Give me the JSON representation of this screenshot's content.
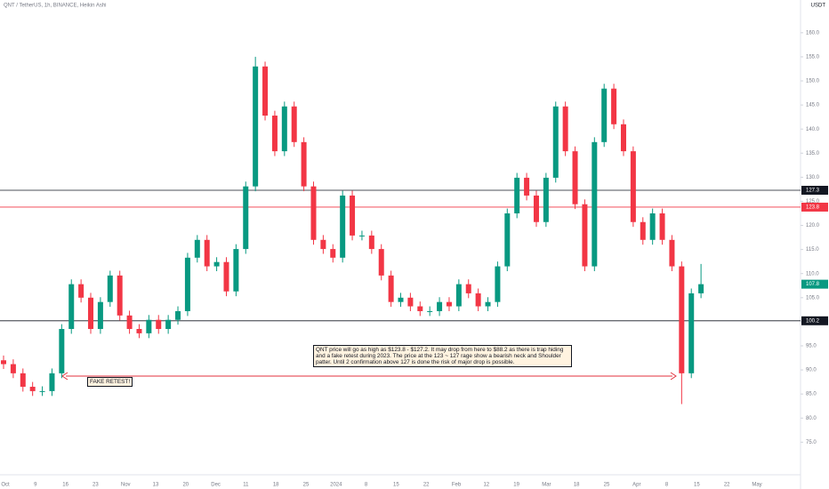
{
  "chart_data": {
    "type": "candlestick",
    "title": "QNT / TetherUS, 1h, BINANCE, Heikin Ashi",
    "currency": "USDT",
    "up_color": "#089981",
    "down_color": "#f23645",
    "open": [
      92.0,
      91.2,
      89.3,
      86.5,
      85.6,
      85.6,
      89.3,
      98.5,
      107.8,
      105.0,
      98.5,
      104.1,
      109.6,
      101.3,
      98.5,
      97.6,
      100.4,
      98.5,
      100.4,
      102.2,
      113.3,
      117.0,
      111.5,
      112.4,
      106.3,
      115.1,
      128.1,
      153.0,
      142.8,
      135.4,
      144.7,
      137.3,
      128.1,
      117.0,
      115.1,
      113.3,
      126.2,
      117.9,
      117.9,
      115.1,
      109.6,
      104.1,
      105.0,
      103.2,
      102.2,
      102.2,
      104.1,
      103.2,
      107.8,
      105.9,
      103.2,
      104.1,
      111.5,
      122.5,
      129.9,
      126.2,
      120.7,
      129.9,
      144.7,
      135.4,
      124.4,
      111.5,
      137.3,
      148.4,
      141.0,
      135.4,
      120.7,
      117.0,
      122.5,
      117.0,
      111.5,
      89.3,
      105.9
    ],
    "high": [
      93.0,
      92.2,
      90.3,
      87.5,
      86.6,
      90.3,
      99.5,
      108.8,
      108.8,
      106.0,
      105.1,
      110.6,
      110.6,
      102.3,
      99.5,
      101.4,
      101.4,
      101.4,
      103.2,
      114.3,
      118.0,
      118.0,
      113.4,
      113.4,
      116.1,
      129.1,
      155.0,
      154.0,
      143.8,
      145.7,
      145.7,
      138.3,
      129.1,
      118.0,
      116.1,
      127.2,
      127.2,
      118.9,
      118.9,
      116.1,
      110.6,
      106.0,
      106.0,
      104.2,
      103.2,
      105.1,
      105.1,
      108.8,
      108.8,
      106.9,
      105.1,
      112.5,
      123.5,
      130.9,
      130.9,
      127.2,
      130.9,
      145.7,
      145.7,
      136.4,
      125.4,
      138.3,
      149.4,
      149.4,
      142.0,
      136.4,
      121.7,
      123.5,
      123.5,
      118.0,
      112.5,
      106.9,
      112.0
    ],
    "low": [
      90.2,
      88.3,
      85.5,
      84.6,
      84.6,
      84.6,
      88.3,
      97.5,
      104.0,
      97.5,
      97.5,
      103.1,
      100.3,
      97.5,
      96.6,
      96.6,
      97.5,
      97.5,
      99.4,
      101.2,
      112.3,
      110.5,
      110.5,
      105.3,
      105.3,
      114.1,
      127.1,
      141.8,
      134.4,
      134.4,
      136.3,
      127.1,
      116.0,
      114.1,
      112.3,
      112.3,
      116.9,
      116.9,
      114.1,
      108.6,
      103.1,
      103.1,
      102.2,
      101.2,
      101.2,
      101.2,
      102.2,
      102.2,
      104.9,
      102.2,
      102.2,
      103.1,
      110.5,
      121.5,
      125.2,
      119.7,
      119.7,
      128.9,
      134.4,
      123.4,
      110.5,
      110.5,
      136.3,
      140.0,
      134.4,
      119.7,
      116.0,
      116.0,
      116.0,
      110.5,
      82.9,
      88.3,
      104.9
    ],
    "close": [
      91.2,
      89.3,
      86.5,
      85.6,
      85.6,
      89.3,
      98.5,
      107.8,
      105.0,
      98.5,
      104.1,
      109.6,
      101.3,
      98.5,
      97.6,
      100.4,
      98.5,
      100.4,
      102.2,
      113.3,
      117.0,
      111.5,
      112.4,
      106.3,
      115.1,
      128.1,
      153.0,
      142.8,
      135.4,
      144.7,
      137.3,
      128.1,
      117.0,
      115.1,
      113.3,
      126.2,
      117.9,
      117.9,
      115.1,
      109.6,
      104.1,
      105.0,
      103.2,
      102.2,
      102.2,
      104.1,
      103.2,
      107.8,
      105.9,
      103.2,
      104.1,
      111.5,
      122.5,
      129.9,
      126.2,
      120.7,
      129.9,
      144.7,
      135.4,
      124.4,
      111.5,
      137.3,
      148.4,
      141.0,
      135.4,
      120.7,
      117.0,
      122.5,
      117.0,
      111.5,
      89.3,
      105.9,
      107.8
    ],
    "ylim": [
      68.6,
      166.8
    ],
    "yticks": [
      {
        "value": 75,
        "label": "75.0"
      },
      {
        "value": 80,
        "label": "80.0"
      },
      {
        "value": 85,
        "label": "85.0"
      },
      {
        "value": 90,
        "label": "90.0"
      },
      {
        "value": 95,
        "label": "95.0"
      },
      {
        "value": 100,
        "label": "100.0"
      },
      {
        "value": 105,
        "label": "105.0"
      },
      {
        "value": 110,
        "label": "110.0"
      },
      {
        "value": 115,
        "label": "115.0"
      },
      {
        "value": 120,
        "label": "120.0"
      },
      {
        "value": 125,
        "label": "125.0"
      },
      {
        "value": 130,
        "label": "130.0"
      },
      {
        "value": 135,
        "label": "135.0"
      },
      {
        "value": 140,
        "label": "140.0"
      },
      {
        "value": 145,
        "label": "145.0"
      },
      {
        "value": 150,
        "label": "150.0"
      },
      {
        "value": 155,
        "label": "155.0"
      },
      {
        "value": 160,
        "label": "160.0"
      }
    ],
    "xticks": [
      "Oct",
      "9",
      "16",
      "23",
      "Nov",
      "13",
      "20",
      "Dec",
      "11",
      "18",
      "25",
      "2024",
      "8",
      "15",
      "22",
      "Feb",
      "12",
      "19",
      "Mar",
      "18",
      "25",
      "Apr",
      "8",
      "15",
      "22",
      "May"
    ],
    "levels": [
      {
        "value": 127.3,
        "color": "#131722"
      },
      {
        "value": 123.8,
        "color": "#f23645"
      },
      {
        "value": 100.2,
        "color": "#131722"
      }
    ],
    "annotations": [
      "QNT price will go as high as $123.8 - $127.2. It may drop from here to $88.2 as there is trap hiding and a fake retest during 2023. The price at the 123 ~ 127 rage show a bearish neck and Shoulder patter. Until 2 confirmation above 127 is done the risk of major drop is possible.",
      "FAKE RETEST!"
    ]
  }
}
